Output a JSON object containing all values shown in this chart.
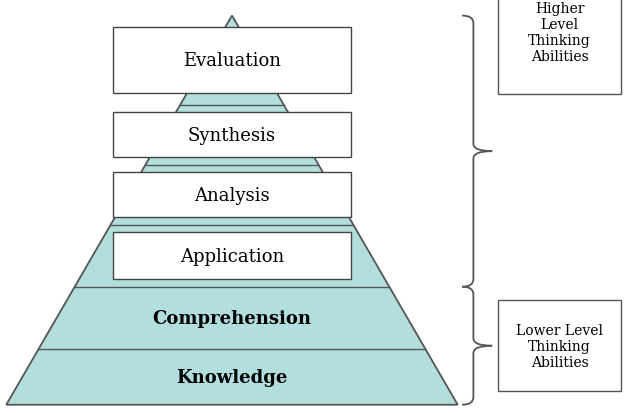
{
  "pyramid_fill_color": "#b2dede",
  "pyramid_edge_color": "#555555",
  "label_box_fill": "#ffffff",
  "label_box_edge": "#444444",
  "levels": [
    {
      "label": "Knowledge",
      "bold": true,
      "has_box": false
    },
    {
      "label": "Comprehension",
      "bold": true,
      "has_box": false
    },
    {
      "label": "Application",
      "bold": false,
      "has_box": true
    },
    {
      "label": "Analysis",
      "bold": false,
      "has_box": true
    },
    {
      "label": "Synthesis",
      "bold": false,
      "has_box": true
    },
    {
      "label": "Evaluation",
      "bold": false,
      "has_box": true
    }
  ],
  "higher_label": "Higher\nLevel\nThinking\nAbilities",
  "lower_label": "Lower Level\nThinking\nAbilities",
  "bg_color": "#ffffff",
  "label_fontsize": 13,
  "annot_fontsize": 10
}
